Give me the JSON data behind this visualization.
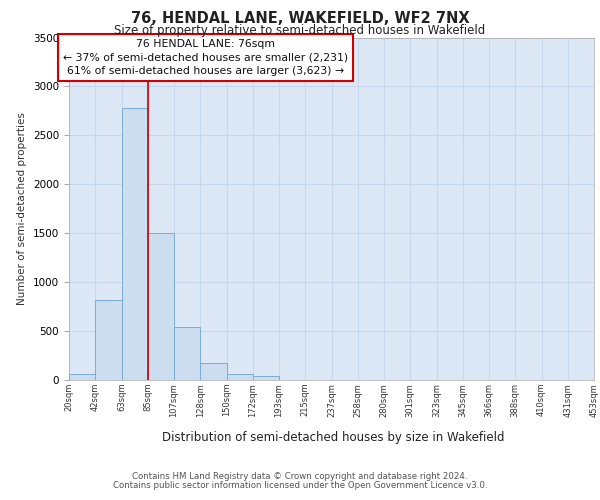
{
  "title": "76, HENDAL LANE, WAKEFIELD, WF2 7NX",
  "subtitle": "Size of property relative to semi-detached houses in Wakefield",
  "xlabel": "Distribution of semi-detached houses by size in Wakefield",
  "ylabel": "Number of semi-detached properties",
  "bin_labels": [
    "20sqm",
    "42sqm",
    "63sqm",
    "85sqm",
    "107sqm",
    "128sqm",
    "150sqm",
    "172sqm",
    "193sqm",
    "215sqm",
    "237sqm",
    "258sqm",
    "280sqm",
    "301sqm",
    "323sqm",
    "345sqm",
    "366sqm",
    "388sqm",
    "410sqm",
    "431sqm",
    "453sqm"
  ],
  "bar_values": [
    60,
    820,
    2780,
    1500,
    540,
    170,
    60,
    40,
    0,
    0,
    0,
    0,
    0,
    0,
    0,
    0,
    0,
    0,
    0,
    0
  ],
  "bar_color": "#ccddf0",
  "bar_edge_color": "#7aadd4",
  "grid_color": "#c8d8ec",
  "background_color": "#dce8f5",
  "property_sqm": 76,
  "annotation_title": "76 HENDAL LANE: 76sqm",
  "annotation_line1": "← 37% of semi-detached houses are smaller (2,231)",
  "annotation_line2": "61% of semi-detached houses are larger (3,623) →",
  "annotation_box_color": "#ffffff",
  "annotation_border_color": "#cc0000",
  "red_line_color": "#cc0000",
  "ylim": [
    0,
    3500
  ],
  "footnote1": "Contains HM Land Registry data © Crown copyright and database right 2024.",
  "footnote2": "Contains public sector information licensed under the Open Government Licence v3.0."
}
